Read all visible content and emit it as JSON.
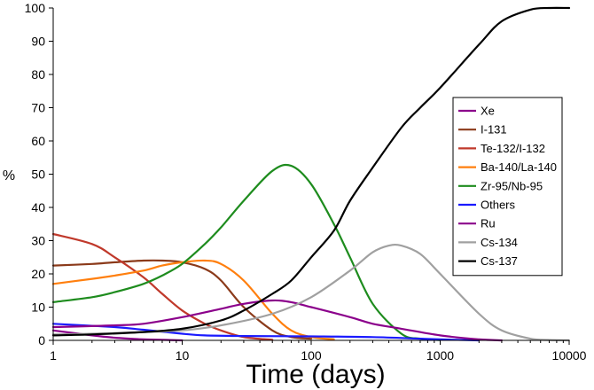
{
  "chart_data": {
    "type": "line",
    "title": "",
    "xlabel": "Time (days)",
    "ylabel": "%",
    "xscale": "log",
    "xlim": [
      1,
      10000
    ],
    "ylim": [
      0,
      100
    ],
    "xticks": [
      "1",
      "10",
      "100",
      "1000",
      "10000"
    ],
    "yticks": [
      "0",
      "10",
      "20",
      "30",
      "40",
      "50",
      "60",
      "70",
      "80",
      "90",
      "100"
    ],
    "grid": false,
    "legend_position": "right",
    "series": [
      {
        "name": "Xe",
        "color": "#8b008b",
        "x": [
          1,
          2,
          3,
          5,
          8,
          10
        ],
        "y": [
          3,
          1.5,
          0.8,
          0.3,
          0.1,
          0
        ]
      },
      {
        "name": "I-131",
        "color": "#8b3a1a",
        "x": [
          1,
          2,
          3,
          5,
          7,
          10,
          15,
          20,
          30,
          50,
          70,
          100
        ],
        "y": [
          22.5,
          23,
          23.5,
          24,
          24,
          23.5,
          21.5,
          18,
          10,
          3,
          1,
          0.5
        ]
      },
      {
        "name": "Te-132/I-132",
        "color": "#c0392b",
        "x": [
          1,
          2,
          3,
          5,
          7,
          10,
          15,
          20,
          30,
          50
        ],
        "y": [
          32,
          29,
          25,
          19,
          14,
          9,
          5,
          3,
          1,
          0.2
        ]
      },
      {
        "name": "Ba-140/La-140",
        "color": "#ff7f0e",
        "x": [
          1,
          2,
          3,
          5,
          7,
          10,
          15,
          20,
          30,
          50,
          70,
          100,
          150
        ],
        "y": [
          17,
          18.5,
          19.5,
          21,
          22.5,
          23.5,
          24,
          23,
          18,
          8,
          3,
          1,
          0.3
        ]
      },
      {
        "name": "Zr-95/Nb-95",
        "color": "#1e8c1e",
        "x": [
          1,
          2,
          3,
          5,
          7,
          10,
          15,
          20,
          30,
          50,
          70,
          100,
          150,
          200,
          300,
          500,
          700,
          1000
        ],
        "y": [
          11.5,
          13,
          14.5,
          17,
          19.5,
          23,
          29,
          34,
          42,
          51,
          52.5,
          47,
          35,
          25,
          11,
          2,
          0.5,
          0.1
        ]
      },
      {
        "name": "Others",
        "color": "#1a1aff",
        "x": [
          1,
          3,
          5,
          10,
          15,
          30,
          100,
          300,
          700,
          1000,
          2000
        ],
        "y": [
          5,
          4,
          3.2,
          2,
          1.5,
          1.3,
          1.2,
          1,
          0.5,
          0.3,
          0
        ]
      },
      {
        "name": "Ru",
        "color": "#8b008b",
        "x": [
          1,
          3,
          5,
          10,
          20,
          30,
          50,
          70,
          100,
          200,
          300,
          500,
          1000,
          2000,
          3000
        ],
        "y": [
          4,
          4.5,
          5,
          7,
          9.5,
          11,
          12,
          11.5,
          10,
          7,
          5,
          3.5,
          1.5,
          0.3,
          0
        ]
      },
      {
        "name": "Cs-134",
        "color": "#a0a0a0",
        "x": [
          1,
          2,
          5,
          10,
          20,
          50,
          100,
          200,
          300,
          400,
          500,
          700,
          1000,
          2000,
          3000,
          5000,
          7000,
          10000
        ],
        "y": [
          1.8,
          2,
          2.5,
          3,
          4.5,
          8,
          13,
          21,
          26.5,
          28.5,
          28.5,
          26,
          20,
          8,
          3,
          0.5,
          0.1,
          0
        ]
      },
      {
        "name": "Cs-137",
        "color": "#000000",
        "x": [
          1,
          2,
          5,
          10,
          20,
          30,
          50,
          70,
          100,
          150,
          200,
          300,
          500,
          700,
          1000,
          2000,
          3000,
          5000,
          7000,
          10000
        ],
        "y": [
          1.5,
          1.8,
          2.5,
          3.5,
          6,
          9,
          14,
          18,
          25,
          33,
          42,
          52,
          64,
          70,
          76,
          89,
          96,
          99.5,
          100,
          100
        ]
      }
    ]
  }
}
